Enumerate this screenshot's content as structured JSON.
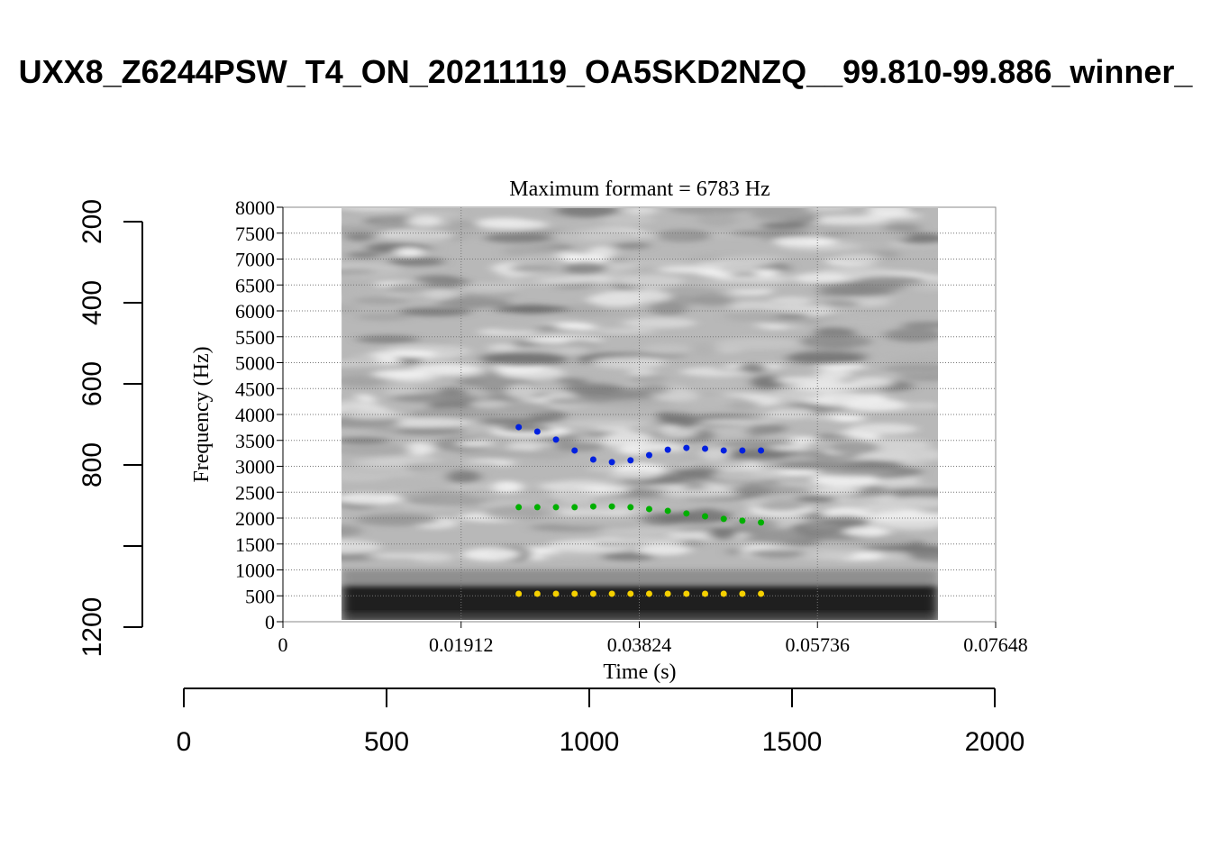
{
  "chart_data": {
    "type": "scatter",
    "title": "UXX8_Z6244PSW_T4_ON_20211119_OA5SKD2NZQ__99.810-99.886_winner_",
    "subtitle": "Maximum formant  =  6783 Hz",
    "xlabel": "Time (s)",
    "ylabel": "Frequency (Hz)",
    "xlim": [
      0,
      0.07648
    ],
    "ylim": [
      0,
      8000
    ],
    "x_ticks": [
      "0",
      "0.01912",
      "0.03824",
      "0.05736",
      "0.07648"
    ],
    "y_ticks": [
      "0",
      "500",
      "1000",
      "1500",
      "2000",
      "2500",
      "3000",
      "3500",
      "4000",
      "4500",
      "5000",
      "5500",
      "6000",
      "6500",
      "7000",
      "7500",
      "8000"
    ],
    "grid": true,
    "spectrogram_time_range": [
      0.0063,
      0.0703
    ],
    "x": [
      0.0253,
      0.0273,
      0.0293,
      0.0313,
      0.0333,
      0.0353,
      0.0373,
      0.0393,
      0.0413,
      0.0433,
      0.0453,
      0.0473,
      0.0493,
      0.0513
    ],
    "series": [
      {
        "name": "F1",
        "color": "#f5d000",
        "values": [
          540,
          540,
          540,
          540,
          540,
          540,
          540,
          540,
          540,
          540,
          540,
          540,
          540,
          540
        ]
      },
      {
        "name": "F2",
        "color": "#00b000",
        "values": [
          2210,
          2210,
          2210,
          2210,
          2225,
          2225,
          2210,
          2175,
          2140,
          2090,
          2035,
          1985,
          1950,
          1915
        ]
      },
      {
        "name": "F3",
        "color": "#0020e0",
        "values": [
          3755,
          3670,
          3515,
          3305,
          3130,
          3080,
          3115,
          3215,
          3320,
          3355,
          3340,
          3305,
          3305,
          3305
        ]
      }
    ],
    "outer_left_axis": {
      "ticks": [
        200,
        400,
        600,
        800,
        1000,
        1200
      ],
      "labels": [
        "200",
        "400",
        "600",
        "800",
        "",
        "1200"
      ],
      "range": [
        200,
        1200
      ]
    },
    "outer_bottom_axis": {
      "ticks": [
        0,
        500,
        1000,
        1500,
        2000
      ],
      "labels": [
        "0",
        "500",
        "1000",
        "1500",
        "2000"
      ],
      "range": [
        0,
        2000
      ]
    }
  }
}
